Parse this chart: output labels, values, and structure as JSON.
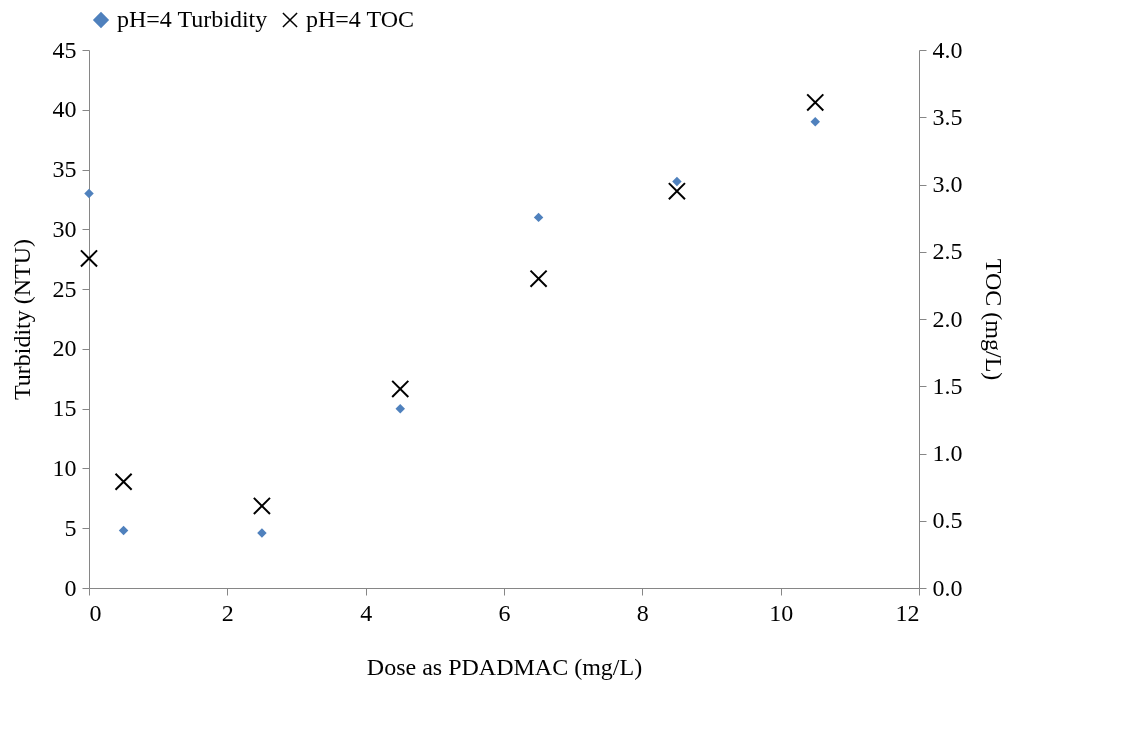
{
  "chart_data": {
    "type": "scatter",
    "xlabel": "Dose as PDADMAC (mg/L)",
    "ylabel": "Turbidity (NTU)",
    "y2label": "TOC (mg/L)",
    "x": [
      0,
      0.5,
      2.5,
      4.5,
      6.5,
      8.5,
      10.5
    ],
    "series": [
      {
        "name": "pH=4 Turbidity",
        "color": "#4f81bd",
        "marker": "diamond",
        "values": [
          33,
          4.8,
          4.6,
          15,
          31,
          34,
          39
        ]
      },
      {
        "name": "pH=4 TOC",
        "color": "#000000",
        "marker": "cross",
        "axis": "y2",
        "values": [
          2.45,
          0.79,
          0.61,
          1.48,
          2.3,
          2.95,
          3.61
        ]
      }
    ],
    "xlim": [
      0,
      12
    ],
    "xticks": [
      0,
      2,
      4,
      6,
      8,
      10,
      12
    ],
    "ylim": [
      0,
      45
    ],
    "yticks": [
      0,
      5,
      10,
      15,
      20,
      25,
      30,
      35,
      40,
      45
    ],
    "y2lim": [
      0,
      4
    ],
    "y2ticks": [
      {
        "value": 0,
        "label": "0.0"
      },
      {
        "value": 0.5,
        "label": "0.5"
      },
      {
        "value": 1,
        "label": "1.0"
      },
      {
        "value": 1.5,
        "label": "1.5"
      },
      {
        "value": 2,
        "label": "2.0"
      },
      {
        "value": 2.5,
        "label": "2.5"
      },
      {
        "value": 3,
        "label": "3.0"
      },
      {
        "value": 3.5,
        "label": "3.5"
      },
      {
        "value": 4,
        "label": "4.0"
      }
    ],
    "grid": false,
    "legend": "top"
  }
}
